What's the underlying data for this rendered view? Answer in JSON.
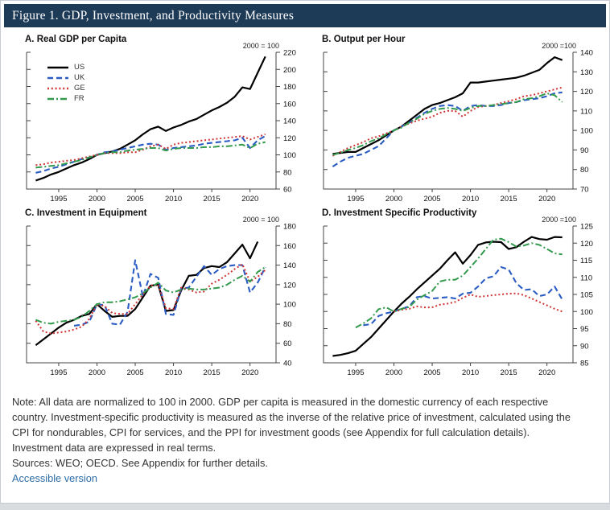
{
  "figure": {
    "title": "Figure 1. GDP, Investment, and Productivity Measures"
  },
  "colors": {
    "titlebar_bg": "#1d3a56",
    "axis": "#444444",
    "us": "#000000",
    "uk": "#2a5cc4",
    "ge": "#cf3434",
    "fr": "#339a4d",
    "link": "#2c6ca5"
  },
  "legend": [
    {
      "name": "US",
      "label": "US"
    },
    {
      "name": "UK",
      "label": "UK"
    },
    {
      "name": "GE",
      "label": "GE"
    },
    {
      "name": "FR",
      "label": "FR"
    }
  ],
  "series_styles": {
    "US": {
      "color": "#000000",
      "dash": "",
      "width": 2.2
    },
    "UK": {
      "color": "#2a5cc4",
      "dash": "7,4",
      "width": 2.1
    },
    "GE": {
      "color": "#cf3434",
      "dash": "2,2.8",
      "width": 2.0
    },
    "FR": {
      "color": "#339a4d",
      "dash": "8,3,2,3",
      "width": 2.0
    }
  },
  "years": [
    1992,
    1993,
    1994,
    1995,
    1996,
    1997,
    1998,
    1999,
    2000,
    2001,
    2002,
    2003,
    2004,
    2005,
    2006,
    2007,
    2008,
    2009,
    2010,
    2011,
    2012,
    2013,
    2014,
    2015,
    2016,
    2017,
    2018,
    2019,
    2020,
    2021,
    2022
  ],
  "chart_data": [
    {
      "type": "line",
      "title": "A. Real GDP per Capita",
      "norm_label": "2000 = 100",
      "ylim": [
        60,
        220
      ],
      "ytick_step": 20,
      "xticks": [
        1995,
        2000,
        2005,
        2010,
        2015,
        2020
      ],
      "series": [
        {
          "name": "US",
          "values": [
            70,
            73,
            77,
            80,
            84,
            88,
            91,
            95,
            100,
            102,
            104,
            107,
            112,
            117,
            124,
            130,
            133,
            128,
            132,
            135,
            139,
            142,
            147,
            152,
            156,
            161,
            168,
            179,
            177,
            196,
            215
          ]
        },
        {
          "name": "UK",
          "values": [
            79,
            81,
            84,
            86,
            89,
            92,
            95,
            97,
            100,
            103,
            104,
            106,
            108,
            110,
            112,
            113,
            112,
            106,
            108,
            109,
            110,
            111,
            113,
            114,
            115,
            116,
            117,
            120,
            108,
            117,
            122
          ]
        },
        {
          "name": "GE",
          "values": [
            88,
            89,
            91,
            92,
            93,
            94,
            96,
            98,
            100,
            102,
            102,
            102,
            103,
            103,
            106,
            110,
            112,
            107,
            112,
            114,
            115,
            116,
            117,
            118,
            119,
            120,
            121,
            122,
            118,
            121,
            124
          ]
        },
        {
          "name": "FR",
          "values": [
            85,
            86,
            87,
            88,
            90,
            92,
            94,
            97,
            100,
            102,
            103,
            103,
            105,
            106,
            107,
            108,
            108,
            105,
            107,
            108,
            108,
            108,
            109,
            109,
            110,
            110,
            111,
            112,
            108,
            113,
            115
          ]
        }
      ]
    },
    {
      "type": "line",
      "title": "B. Output per Hour",
      "norm_label": "2000 =100",
      "ylim": [
        70,
        140
      ],
      "ytick_step": 10,
      "xticks": [
        1995,
        2000,
        2005,
        2010,
        2015,
        2020
      ],
      "series": [
        {
          "name": "US",
          "values": [
            88,
            88.5,
            89,
            89,
            91,
            93,
            95,
            97.5,
            100,
            102,
            105,
            108,
            111,
            113,
            114,
            115.5,
            117,
            119,
            124.5,
            124.5,
            125,
            125.5,
            126,
            126.5,
            127,
            128,
            129.5,
            131,
            134.5,
            137.5,
            136
          ]
        },
        {
          "name": "UK",
          "values": [
            81.5,
            84,
            86,
            87,
            88,
            90,
            92,
            96,
            100,
            102,
            104,
            106.5,
            109,
            111,
            112.5,
            113,
            112.5,
            110,
            112.5,
            113,
            112.5,
            112.5,
            113,
            114,
            114.5,
            115.5,
            116,
            116.5,
            117.5,
            119,
            119.5
          ]
        },
        {
          "name": "GE",
          "values": [
            87,
            89,
            91,
            92.5,
            94,
            96,
            97,
            98.5,
            100,
            102,
            103.5,
            105,
            106,
            107,
            109,
            110,
            110,
            107,
            110,
            112,
            112.5,
            113,
            114,
            115,
            116,
            117.5,
            118,
            119,
            120,
            121,
            122
          ]
        },
        {
          "name": "FR",
          "values": [
            87.5,
            88.5,
            90,
            91,
            92.5,
            94.5,
            96,
            98,
            100,
            101.5,
            104,
            106,
            108.5,
            110,
            111,
            111.5,
            111,
            110,
            111.5,
            112.5,
            112.5,
            113,
            113.5,
            114,
            114.5,
            116,
            116.5,
            117.5,
            119,
            118,
            114.5
          ]
        }
      ]
    },
    {
      "type": "line",
      "title": "C. Investment in Equipment",
      "norm_label": "2000 = 100",
      "ylim": [
        40,
        180
      ],
      "ytick_step": 20,
      "xticks": [
        1995,
        2000,
        2005,
        2010,
        2015,
        2020
      ],
      "series": [
        {
          "name": "US",
          "values": [
            58,
            64,
            70,
            76,
            81,
            84,
            88,
            90,
            100,
            93,
            87,
            88,
            88,
            95,
            107,
            119,
            120,
            93,
            94,
            114,
            129,
            130,
            137,
            139,
            138,
            143,
            152,
            161,
            147,
            164,
            null
          ]
        },
        {
          "name": "UK",
          "values": [
            null,
            null,
            null,
            null,
            null,
            78,
            79,
            82,
            100,
            99,
            80,
            79,
            92,
            145,
            108,
            131,
            127,
            90,
            89,
            116,
            117,
            128,
            139,
            130,
            136,
            139,
            140,
            140,
            112,
            122,
            138
          ]
        },
        {
          "name": "GE",
          "values": [
            83,
            72,
            70,
            71,
            72,
            74,
            77,
            85,
            100,
            98,
            91,
            90,
            90,
            100,
            110,
            119,
            120,
            96,
            95,
            117,
            115,
            112,
            113,
            121,
            125,
            130,
            136,
            141,
            123,
            128,
            135
          ]
        },
        {
          "name": "FR",
          "values": [
            84,
            81,
            80,
            82,
            83,
            84,
            87,
            93,
            100,
            102,
            102,
            103,
            105,
            107,
            111,
            117,
            122,
            114,
            112,
            115,
            116,
            115,
            115,
            116,
            117,
            120,
            125,
            129,
            123,
            133,
            138
          ]
        }
      ]
    },
    {
      "type": "line",
      "title": "D. Investment Specific Productivity",
      "norm_label": "2000 =100",
      "ylim": [
        85,
        125
      ],
      "ytick_step": 5,
      "xticks": [
        1995,
        2000,
        2005,
        2010,
        2015,
        2020
      ],
      "series": [
        {
          "name": "US",
          "values": [
            87,
            87.3,
            87.8,
            88.5,
            90.5,
            92.5,
            95,
            97.5,
            100,
            102.3,
            104.3,
            106.5,
            108.5,
            110.5,
            112.5,
            115,
            117.3,
            114,
            116.5,
            119.5,
            120.2,
            120.4,
            120.3,
            118.3,
            118.8,
            120.4,
            121.8,
            121.2,
            121,
            121.8,
            121.7
          ]
        },
        {
          "name": "UK",
          "values": [
            null,
            null,
            null,
            null,
            96,
            96.3,
            98.7,
            99.5,
            100,
            100.8,
            101.5,
            104.2,
            104.5,
            103.8,
            104,
            104.2,
            103.8,
            105.2,
            105.5,
            107.3,
            109.7,
            110.3,
            113,
            112.3,
            108.3,
            106.3,
            106.5,
            104.5,
            105,
            107.3,
            103.5
          ]
        },
        {
          "name": "GE",
          "values": [
            null,
            null,
            null,
            null,
            null,
            null,
            null,
            null,
            100,
            100.5,
            100.8,
            101.5,
            101.2,
            101.2,
            102,
            102.3,
            102.8,
            104,
            105,
            104.3,
            104.5,
            104.8,
            105,
            105.2,
            105.3,
            104.8,
            103.8,
            102.8,
            101.8,
            100.8,
            100
          ]
        },
        {
          "name": "FR",
          "values": [
            null,
            null,
            null,
            95.3,
            96.5,
            98,
            100.7,
            101.2,
            100,
            100.8,
            101.3,
            103.5,
            104.8,
            106,
            108.8,
            109.3,
            109.3,
            110.5,
            113,
            115.5,
            118.3,
            121,
            121.3,
            120.3,
            119,
            119.3,
            120,
            119.5,
            118.3,
            117,
            116.7
          ]
        }
      ]
    }
  ],
  "note": {
    "line1": "Note: All data are normalized to 100 in 2000. GDP per capita is measured in the domestic currency of each respective",
    "line2": "country. Investment-specific productivity is measured as the inverse of the relative price of investment, calculated using the",
    "line3": "CPI for nondurables, CPI for services, and the PPI for investment goods (see Appendix for full calculation details).",
    "line4": "Investment data are expressed in real terms.",
    "sources": "Sources: WEO; OECD. See Appendix for further details.",
    "link": "Accessible version"
  }
}
